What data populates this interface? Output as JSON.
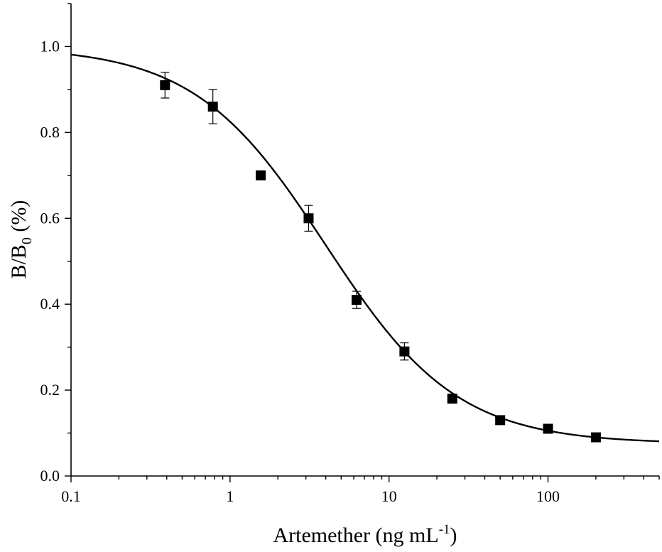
{
  "chart_data": {
    "type": "scatter",
    "x_scale": "log",
    "xlim": [
      0.1,
      500
    ],
    "ylim": [
      0.0,
      1.1
    ],
    "xlabel": {
      "main": "Artemether (ng mL",
      "sup": "-1",
      "close": ")"
    },
    "ylabel": {
      "main": "B/B",
      "sub": "0",
      "suffix": " (%)"
    },
    "x_ticks": [
      {
        "value": 0.1,
        "label": "0.1"
      },
      {
        "value": 1,
        "label": "1"
      },
      {
        "value": 10,
        "label": "10"
      },
      {
        "value": 100,
        "label": "100"
      }
    ],
    "y_ticks": [
      {
        "value": 0.0,
        "label": "0.0"
      },
      {
        "value": 0.2,
        "label": "0.2"
      },
      {
        "value": 0.4,
        "label": "0.4"
      },
      {
        "value": 0.6,
        "label": "0.6"
      },
      {
        "value": 0.8,
        "label": "0.8"
      },
      {
        "value": 1.0,
        "label": "1.0"
      }
    ],
    "series": [
      {
        "type": "scatter",
        "points": [
          {
            "x": 0.39,
            "y": 0.91,
            "err": 0.03
          },
          {
            "x": 0.78,
            "y": 0.86,
            "err": 0.04
          },
          {
            "x": 1.56,
            "y": 0.7,
            "err": 0.01
          },
          {
            "x": 3.12,
            "y": 0.6,
            "err": 0.03
          },
          {
            "x": 6.25,
            "y": 0.41,
            "err": 0.02
          },
          {
            "x": 12.5,
            "y": 0.29,
            "err": 0.02
          },
          {
            "x": 25,
            "y": 0.18,
            "err": 0.01
          },
          {
            "x": 50,
            "y": 0.13,
            "err": 0.01
          },
          {
            "x": 100,
            "y": 0.11,
            "err": 0.01
          },
          {
            "x": 200,
            "y": 0.09,
            "err": 0.005
          }
        ]
      },
      {
        "type": "line",
        "fit": "four-parameter logistic",
        "params": {
          "top": 1.0,
          "bottom": 0.075,
          "ic50": 4.0,
          "hill": 1.05
        }
      }
    ],
    "grid": false,
    "legend": "none"
  }
}
